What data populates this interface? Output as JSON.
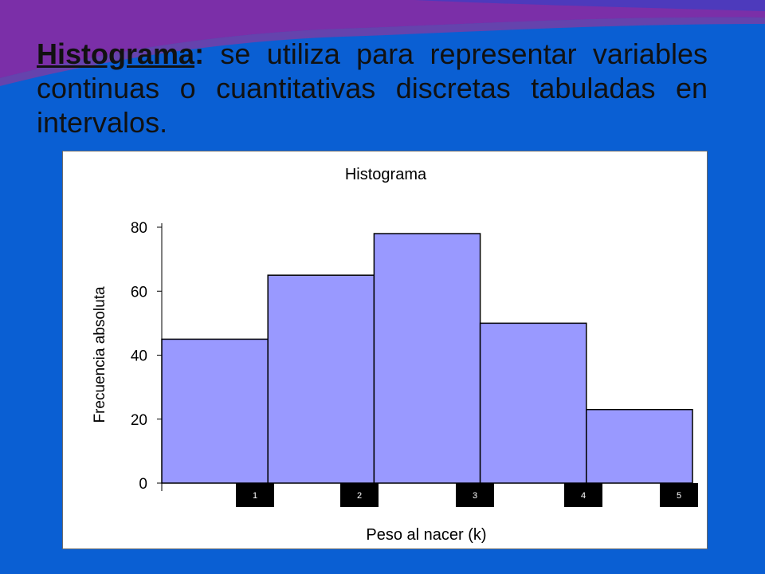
{
  "slide": {
    "heading_term": "Histograma",
    "heading_colon": ":",
    "heading_body": " se utiliza para representar variables continuas o cuantitativas discretas tabuladas en intervalos.",
    "background_color": "#0a5fd3",
    "swoosh_colors": [
      "#7b2fa8",
      "#b02c8e",
      "#3a3fc4"
    ]
  },
  "chart_data": {
    "type": "bar",
    "title": "Histograma",
    "xlabel": "Peso al nacer (k)",
    "ylabel": "Frecuencia absoluta",
    "ylim": [
      0,
      80
    ],
    "yticks": [
      "0",
      "20",
      "40",
      "60",
      "80"
    ],
    "values": [
      45,
      65,
      78,
      50,
      23
    ],
    "x_markers": [
      "1",
      "2",
      "3",
      "4",
      "5"
    ],
    "bar_color": "#9999ff",
    "bar_stroke": "#000000",
    "marker_color": "#000000",
    "marker_text_color": "#ffffff",
    "grid": false,
    "legend": "none"
  }
}
